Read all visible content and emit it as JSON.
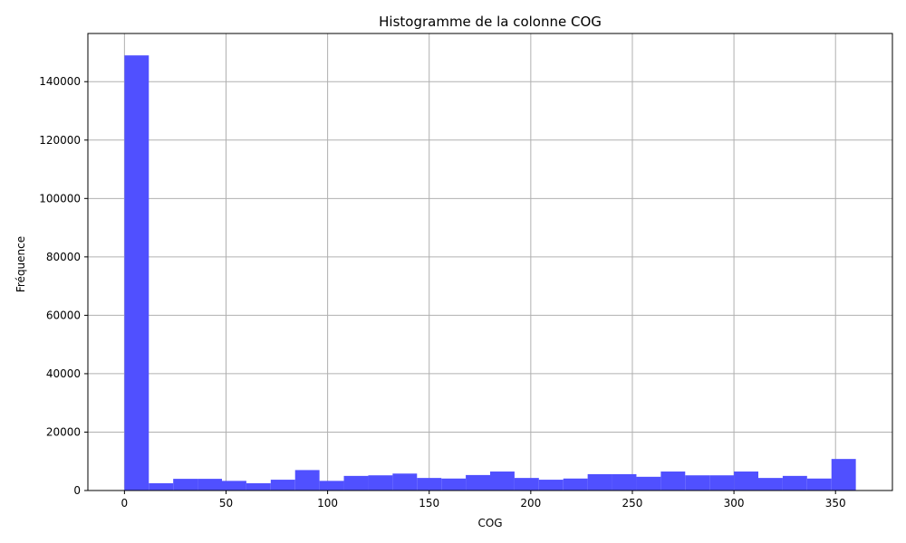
{
  "chart_data": {
    "type": "bar",
    "title": "Histogramme de la colonne COG",
    "xlabel": "COG",
    "ylabel": "Fréquence",
    "bin_width": 12,
    "bins_start": [
      0,
      12,
      24,
      36,
      48,
      60,
      72,
      84,
      96,
      108,
      120,
      132,
      144,
      156,
      168,
      180,
      192,
      204,
      216,
      228,
      240,
      252,
      264,
      276,
      288,
      300,
      312,
      324,
      336,
      348
    ],
    "values": [
      149000,
      2500,
      4000,
      4000,
      3300,
      2500,
      3700,
      7000,
      3300,
      5000,
      5200,
      5800,
      4300,
      4100,
      5300,
      6500,
      4300,
      3700,
      4100,
      5600,
      5600,
      4700,
      6500,
      5200,
      5200,
      6500,
      4300,
      5000,
      4100,
      10800
    ],
    "xlim": [
      -18,
      378
    ],
    "ylim": [
      0,
      156500
    ],
    "x_ticks": [
      0,
      50,
      100,
      150,
      200,
      250,
      300,
      350
    ],
    "y_ticks": [
      0,
      20000,
      40000,
      60000,
      80000,
      100000,
      120000,
      140000
    ],
    "grid": true,
    "bar_color": "#5050ff"
  }
}
